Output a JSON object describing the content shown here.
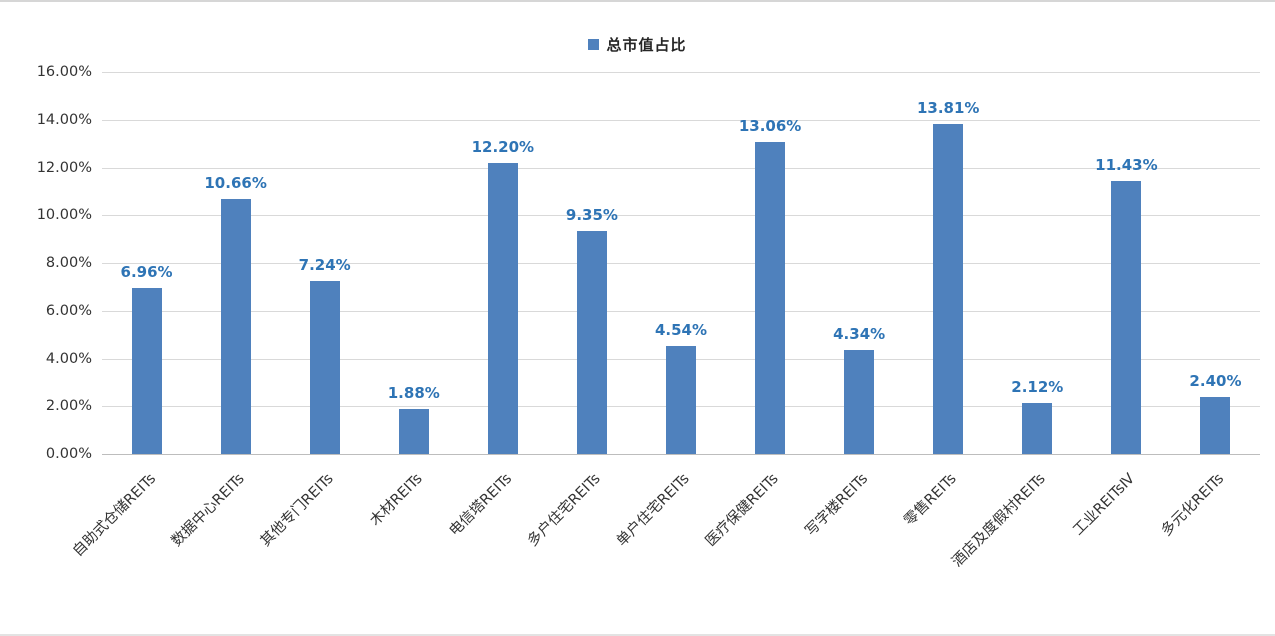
{
  "chart_data": {
    "type": "bar",
    "title": "总市值占比",
    "legend": [
      "总市值占比"
    ],
    "legend_position": "top",
    "categories": [
      "自助式仓储REITs",
      "数据中心REITs",
      "其他专门REITs",
      "木材REITs",
      "电信塔REITs",
      "多户住宅REITs",
      "单户住宅REITs",
      "医疗保健REITs",
      "写字楼REITs",
      "零售REITs",
      "酒店及度假村REITs",
      "工业REITsⅣ",
      "多元化REITs"
    ],
    "values": [
      6.96,
      10.66,
      7.24,
      1.88,
      12.2,
      9.35,
      4.54,
      13.06,
      4.34,
      13.81,
      2.12,
      11.43,
      2.4
    ],
    "value_labels": [
      "6.96%",
      "10.66%",
      "7.24%",
      "1.88%",
      "12.20%",
      "9.35%",
      "4.54%",
      "13.06%",
      "4.34%",
      "13.81%",
      "2.12%",
      "11.43%",
      "2.40%"
    ],
    "xlabel": "",
    "ylabel": "",
    "ylim": [
      0,
      16
    ],
    "y_ticks": [
      "16.00%",
      "14.00%",
      "12.00%",
      "10.00%",
      "8.00%",
      "6.00%",
      "4.00%",
      "2.00%",
      "0.00%"
    ],
    "grid": true,
    "bar_color": "#4f81bd",
    "value_label_color": "#2e74b5",
    "gridline_color": "#d9d9d9"
  }
}
